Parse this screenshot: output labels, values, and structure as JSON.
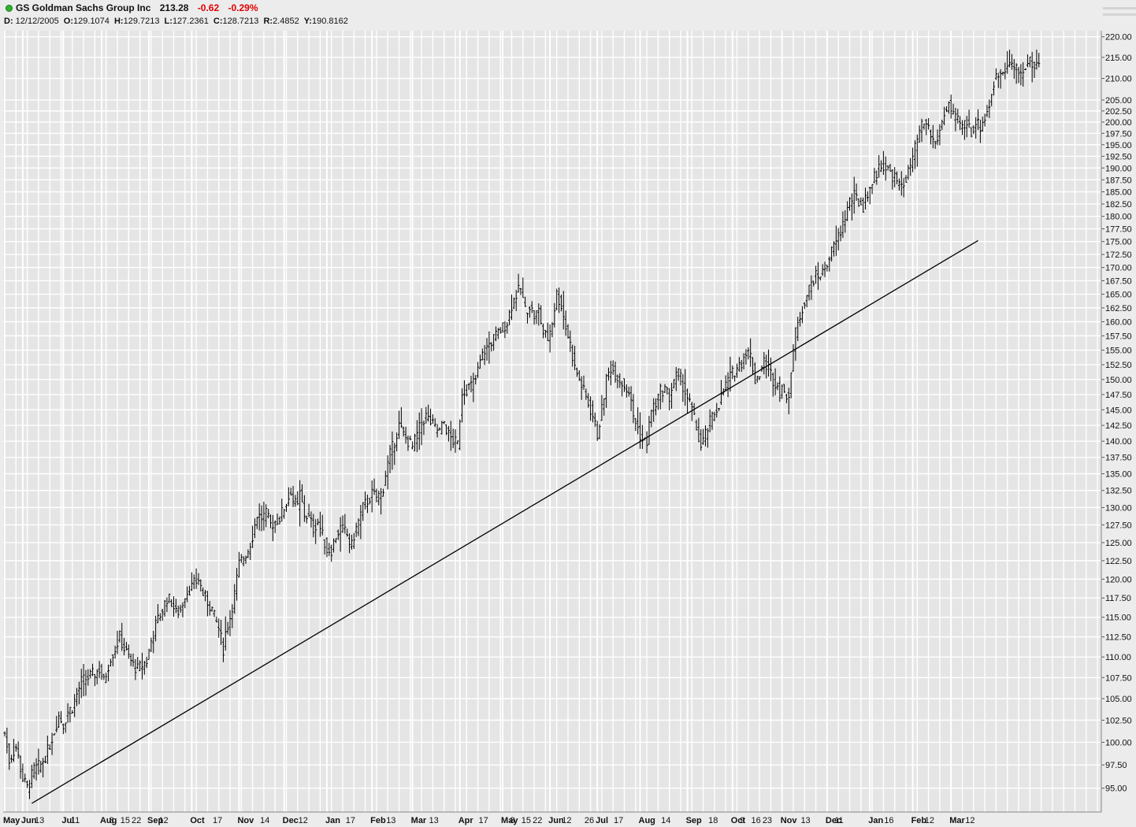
{
  "header": {
    "status_icon": "green-status-dot",
    "ticker_name": "GS Goldman Sachs Group Inc",
    "last": "213.28",
    "change": "-0.62",
    "change_pct": "-0.29%",
    "change_color": "#e00000",
    "d_label": "D:",
    "d_value": "12/12/2005",
    "o_label": "O:",
    "o_value": "129.1074",
    "h_label": "H:",
    "h_value": "129.7213",
    "l_label": "L:",
    "l_value": "127.2361",
    "c_label": "C:",
    "c_value": "128.7213",
    "r_label": "R:",
    "r_value": "2.4852",
    "y_label": "Y:",
    "y_value": "190.8162"
  },
  "chart_data": {
    "type": "ohlc_bar",
    "title": "GS Goldman Sachs Group Inc",
    "y_scale": "log",
    "ylim": [
      92.5,
      221.5
    ],
    "grid": true,
    "plot_bg": "#e5e5e5",
    "grid_color": "#ffffff",
    "bar_color": "#000000",
    "y_ticks": [
      "95.00",
      "97.50",
      "100.00",
      "102.50",
      "105.00",
      "107.50",
      "110.00",
      "112.50",
      "115.00",
      "117.50",
      "120.00",
      "122.50",
      "125.00",
      "127.50",
      "130.00",
      "132.50",
      "135.00",
      "137.50",
      "140.00",
      "142.50",
      "145.00",
      "147.50",
      "150.00",
      "152.50",
      "155.00",
      "157.50",
      "160.00",
      "162.50",
      "165.00",
      "167.50",
      "170.00",
      "172.50",
      "175.00",
      "177.50",
      "180.00",
      "182.50",
      "185.00",
      "187.50",
      "190.00",
      "192.50",
      "195.00",
      "197.50",
      "200.00",
      "202.50",
      "205.00",
      "210.00",
      "215.00",
      "220.00"
    ],
    "x_labels": [
      {
        "text": "May",
        "bold": true,
        "i": 0
      },
      {
        "text": "Jun",
        "bold": true,
        "i": 8
      },
      {
        "text": "13",
        "bold": false,
        "i": 14
      },
      {
        "text": "Jul",
        "bold": true,
        "i": 26
      },
      {
        "text": "11",
        "bold": false,
        "i": 30
      },
      {
        "text": "Aug",
        "bold": true,
        "i": 43
      },
      {
        "text": "8",
        "bold": false,
        "i": 47
      },
      {
        "text": "15",
        "bold": false,
        "i": 52
      },
      {
        "text": "22",
        "bold": false,
        "i": 57
      },
      {
        "text": "Sep",
        "bold": true,
        "i": 64
      },
      {
        "text": "12",
        "bold": false,
        "i": 69
      },
      {
        "text": "Oct",
        "bold": true,
        "i": 83
      },
      {
        "text": "17",
        "bold": false,
        "i": 93
      },
      {
        "text": "Nov",
        "bold": true,
        "i": 104
      },
      {
        "text": "14",
        "bold": false,
        "i": 114
      },
      {
        "text": "Dec",
        "bold": true,
        "i": 124
      },
      {
        "text": "12",
        "bold": false,
        "i": 131
      },
      {
        "text": "Jan",
        "bold": true,
        "i": 143
      },
      {
        "text": "17",
        "bold": false,
        "i": 152
      },
      {
        "text": "Feb",
        "bold": true,
        "i": 163
      },
      {
        "text": "13",
        "bold": false,
        "i": 170
      },
      {
        "text": "Mar",
        "bold": true,
        "i": 181
      },
      {
        "text": "13",
        "bold": false,
        "i": 189
      },
      {
        "text": "Apr",
        "bold": true,
        "i": 202
      },
      {
        "text": "17",
        "bold": false,
        "i": 211
      },
      {
        "text": "May",
        "bold": true,
        "i": 221
      },
      {
        "text": "8",
        "bold": false,
        "i": 225
      },
      {
        "text": "15",
        "bold": false,
        "i": 230
      },
      {
        "text": "22",
        "bold": false,
        "i": 235
      },
      {
        "text": "Jun",
        "bold": true,
        "i": 242
      },
      {
        "text": "12",
        "bold": false,
        "i": 248
      },
      {
        "text": "26",
        "bold": false,
        "i": 258
      },
      {
        "text": "Jul",
        "bold": true,
        "i": 263
      },
      {
        "text": "17",
        "bold": false,
        "i": 271
      },
      {
        "text": "Aug",
        "bold": true,
        "i": 282
      },
      {
        "text": "14",
        "bold": false,
        "i": 292
      },
      {
        "text": "Sep",
        "bold": true,
        "i": 303
      },
      {
        "text": "18",
        "bold": false,
        "i": 313
      },
      {
        "text": "Oct",
        "bold": true,
        "i": 323
      },
      {
        "text": "9",
        "bold": false,
        "i": 327
      },
      {
        "text": "16",
        "bold": false,
        "i": 332
      },
      {
        "text": "23",
        "bold": false,
        "i": 337
      },
      {
        "text": "Nov",
        "bold": true,
        "i": 345
      },
      {
        "text": "13",
        "bold": false,
        "i": 354
      },
      {
        "text": "Dec",
        "bold": true,
        "i": 365
      },
      {
        "text": "11",
        "bold": false,
        "i": 369
      },
      {
        "text": "Jan",
        "bold": true,
        "i": 384
      },
      {
        "text": "16",
        "bold": false,
        "i": 391
      },
      {
        "text": "Feb",
        "bold": true,
        "i": 403
      },
      {
        "text": "12",
        "bold": false,
        "i": 409
      },
      {
        "text": "Mar",
        "bold": true,
        "i": 420
      },
      {
        "text": "12",
        "bold": false,
        "i": 427
      }
    ],
    "trendline": {
      "from": {
        "i": 12,
        "price": 93.4
      },
      "to": {
        "i": 432,
        "price": 175.2
      }
    },
    "anchors": [
      [
        0,
        101
      ],
      [
        2,
        98
      ],
      [
        5,
        99.5
      ],
      [
        8,
        96
      ],
      [
        10,
        95
      ],
      [
        13,
        97
      ],
      [
        16,
        97.5
      ],
      [
        19,
        99
      ],
      [
        21,
        100.5
      ],
      [
        24,
        103
      ],
      [
        26,
        102
      ],
      [
        28,
        103.5
      ],
      [
        30,
        104
      ],
      [
        32,
        105.5
      ],
      [
        34,
        107
      ],
      [
        37,
        107.5
      ],
      [
        40,
        108
      ],
      [
        42,
        108.5
      ],
      [
        44,
        107
      ],
      [
        47,
        110
      ],
      [
        49,
        111
      ],
      [
        51,
        112.5
      ],
      [
        53,
        111
      ],
      [
        55,
        110
      ],
      [
        57,
        109
      ],
      [
        59,
        108.5
      ],
      [
        61,
        109
      ],
      [
        63,
        109.5
      ],
      [
        65,
        112
      ],
      [
        67,
        114
      ],
      [
        70,
        116
      ],
      [
        72,
        117.5
      ],
      [
        74,
        117
      ],
      [
        76,
        115.5
      ],
      [
        78,
        116
      ],
      [
        80,
        118
      ],
      [
        83,
        119
      ],
      [
        86,
        120
      ],
      [
        88,
        118
      ],
      [
        90,
        117
      ],
      [
        92,
        116
      ],
      [
        93,
        115
      ],
      [
        95,
        113.5
      ],
      [
        97,
        111
      ],
      [
        98,
        113
      ],
      [
        100,
        115
      ],
      [
        102,
        118
      ],
      [
        104,
        122
      ],
      [
        106,
        123
      ],
      [
        108,
        124
      ],
      [
        110,
        126
      ],
      [
        112,
        129
      ],
      [
        114,
        128.5
      ],
      [
        116,
        129
      ],
      [
        118,
        127.5
      ],
      [
        120,
        128
      ],
      [
        122,
        128.5
      ],
      [
        124,
        130
      ],
      [
        126,
        131.5
      ],
      [
        127,
        132.5
      ],
      [
        128,
        131
      ],
      [
        130,
        130
      ],
      [
        131,
        132
      ],
      [
        133,
        129
      ],
      [
        135,
        128.5
      ],
      [
        137,
        127
      ],
      [
        139,
        128
      ],
      [
        141,
        126
      ],
      [
        143,
        124
      ],
      [
        145,
        124
      ],
      [
        147,
        126
      ],
      [
        149,
        127
      ],
      [
        151,
        126.5
      ],
      [
        152,
        126
      ],
      [
        153,
        125
      ],
      [
        154,
        124.5
      ],
      [
        155,
        126
      ],
      [
        157,
        128
      ],
      [
        159,
        130
      ],
      [
        161,
        131
      ],
      [
        163,
        132
      ],
      [
        165,
        131.5
      ],
      [
        167,
        132
      ],
      [
        168,
        133
      ],
      [
        169,
        135
      ],
      [
        171,
        138
      ],
      [
        173,
        140
      ],
      [
        175,
        142.5
      ],
      [
        177,
        141
      ],
      [
        179,
        140
      ],
      [
        181,
        139
      ],
      [
        183,
        141
      ],
      [
        185,
        143
      ],
      [
        187,
        144
      ],
      [
        189,
        143
      ],
      [
        191,
        142
      ],
      [
        193,
        141.5
      ],
      [
        195,
        143
      ],
      [
        197,
        141
      ],
      [
        199,
        140
      ],
      [
        201,
        139.5
      ],
      [
        203,
        148
      ],
      [
        205,
        148.5
      ],
      [
        207,
        149
      ],
      [
        209,
        150
      ],
      [
        211,
        153
      ],
      [
        213,
        155
      ],
      [
        215,
        156
      ],
      [
        217,
        157
      ],
      [
        219,
        158
      ],
      [
        221,
        159
      ],
      [
        223,
        160
      ],
      [
        225,
        163
      ],
      [
        227,
        165
      ],
      [
        229,
        166
      ],
      [
        231,
        162
      ],
      [
        233,
        163
      ],
      [
        235,
        161
      ],
      [
        237,
        162
      ],
      [
        239,
        158
      ],
      [
        241,
        157
      ],
      [
        243,
        160
      ],
      [
        245,
        165
      ],
      [
        247,
        163
      ],
      [
        249,
        159
      ],
      [
        251,
        156
      ],
      [
        253,
        152
      ],
      [
        255,
        150
      ],
      [
        257,
        148
      ],
      [
        259,
        146
      ],
      [
        261,
        144
      ],
      [
        263,
        141
      ],
      [
        265,
        145
      ],
      [
        267,
        150
      ],
      [
        269,
        152
      ],
      [
        271,
        151
      ],
      [
        273,
        150
      ],
      [
        275,
        149
      ],
      [
        277,
        148
      ],
      [
        279,
        144
      ],
      [
        281,
        142
      ],
      [
        283,
        140
      ],
      [
        285,
        140
      ],
      [
        287,
        145
      ],
      [
        289,
        146
      ],
      [
        291,
        148
      ],
      [
        293,
        148.5
      ],
      [
        295,
        147
      ],
      [
        297,
        150
      ],
      [
        299,
        151
      ],
      [
        301,
        149
      ],
      [
        303,
        147
      ],
      [
        305,
        145
      ],
      [
        307,
        142
      ],
      [
        309,
        139
      ],
      [
        311,
        141
      ],
      [
        313,
        143
      ],
      [
        315,
        144.5
      ],
      [
        317,
        146
      ],
      [
        319,
        148
      ],
      [
        321,
        150
      ],
      [
        323,
        151
      ],
      [
        325,
        152
      ],
      [
        327,
        153
      ],
      [
        329,
        155
      ],
      [
        331,
        154
      ],
      [
        333,
        150
      ],
      [
        335,
        151
      ],
      [
        337,
        153
      ],
      [
        339,
        152
      ],
      [
        341,
        150
      ],
      [
        343,
        149
      ],
      [
        344,
        148
      ],
      [
        345,
        149
      ],
      [
        346,
        147
      ],
      [
        348,
        148
      ],
      [
        350,
        155
      ],
      [
        351,
        158
      ],
      [
        353,
        161
      ],
      [
        355,
        164
      ],
      [
        357,
        166
      ],
      [
        359,
        168
      ],
      [
        361,
        168.5
      ],
      [
        363,
        169
      ],
      [
        365,
        171
      ],
      [
        367,
        173
      ],
      [
        369,
        175
      ],
      [
        371,
        177
      ],
      [
        373,
        180
      ],
      [
        375,
        183
      ],
      [
        377,
        184
      ],
      [
        379,
        183
      ],
      [
        381,
        182
      ],
      [
        383,
        185
      ],
      [
        385,
        187
      ],
      [
        387,
        189
      ],
      [
        389,
        191
      ],
      [
        391,
        190
      ],
      [
        393,
        189
      ],
      [
        395,
        188
      ],
      [
        397,
        186
      ],
      [
        399,
        187
      ],
      [
        401,
        189
      ],
      [
        403,
        192
      ],
      [
        405,
        196
      ],
      [
        407,
        199
      ],
      [
        409,
        200
      ],
      [
        411,
        197
      ],
      [
        413,
        195
      ],
      [
        415,
        198
      ],
      [
        417,
        202
      ],
      [
        419,
        204
      ],
      [
        421,
        201
      ],
      [
        423,
        200
      ],
      [
        425,
        199
      ],
      [
        427,
        200
      ],
      [
        429,
        198
      ],
      [
        431,
        200
      ],
      [
        433,
        199
      ],
      [
        435,
        201
      ],
      [
        437,
        204
      ],
      [
        439,
        209
      ],
      [
        441,
        211
      ],
      [
        443,
        212
      ],
      [
        445,
        214
      ],
      [
        447,
        213
      ],
      [
        449,
        212
      ],
      [
        451,
        211
      ],
      [
        453,
        213
      ],
      [
        455,
        214
      ],
      [
        457,
        213
      ],
      [
        459,
        213.5
      ]
    ]
  }
}
